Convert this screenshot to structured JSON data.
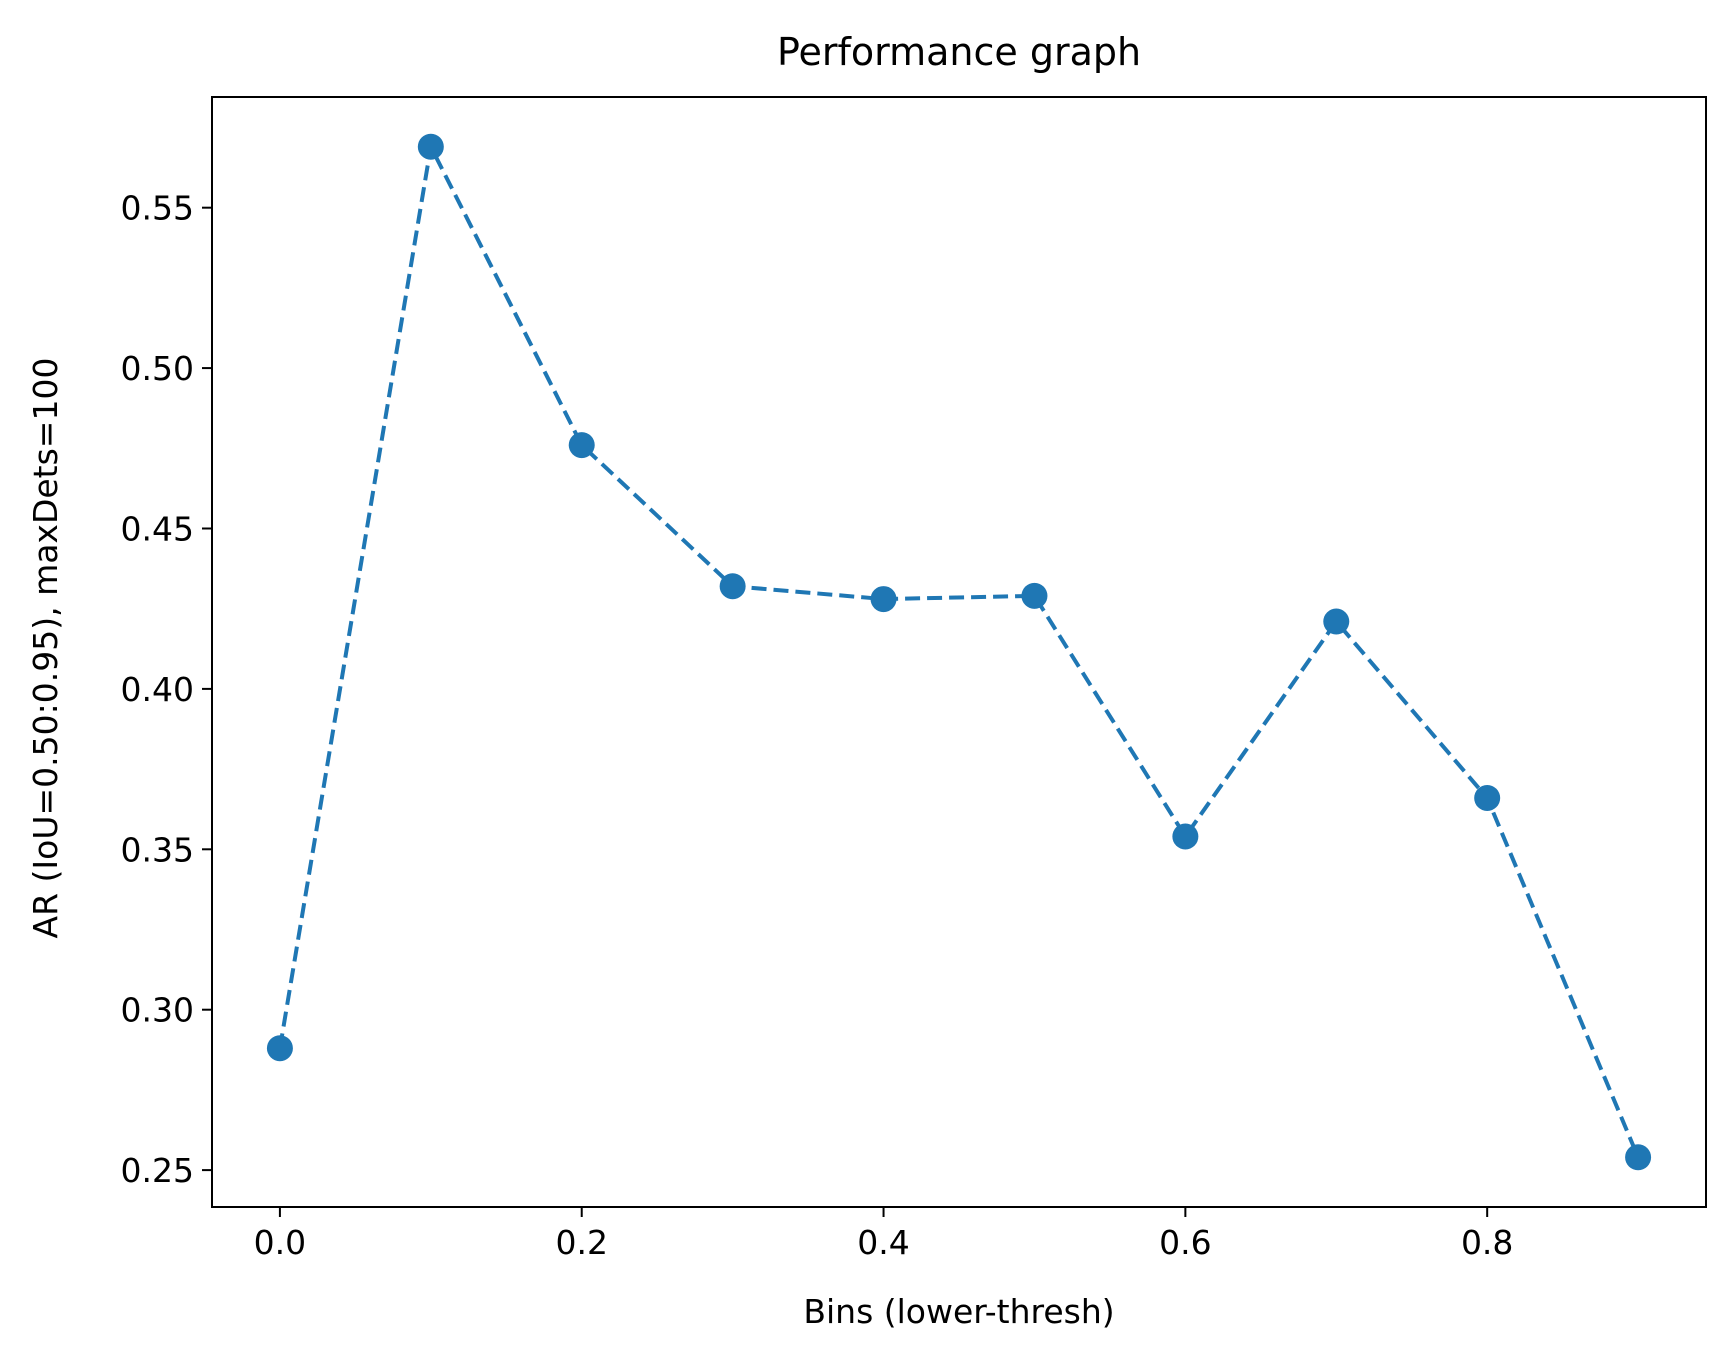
{
  "chart_data": {
    "type": "line",
    "title": "Performance graph",
    "xlabel": "Bins (lower-thresh)",
    "ylabel": "AR (IoU=0.50:0.95), maxDets=100",
    "x": [
      0.0,
      0.1,
      0.2,
      0.3,
      0.4,
      0.5,
      0.6,
      0.7,
      0.8,
      0.9
    ],
    "series": [
      {
        "values": [
          0.288,
          0.569,
          0.476,
          0.432,
          0.428,
          0.429,
          0.354,
          0.421,
          0.366,
          0.254
        ],
        "color": "#1f77b4",
        "line_style": "dashed",
        "marker": "circle"
      }
    ],
    "xlim": [
      -0.045,
      0.945
    ],
    "ylim": [
      0.2385,
      0.5845
    ],
    "xticks": [
      0.0,
      0.2,
      0.4,
      0.6,
      0.8
    ],
    "xtick_labels": [
      "0.0",
      "0.2",
      "0.4",
      "0.6",
      "0.8"
    ],
    "yticks": [
      0.25,
      0.3,
      0.35,
      0.4,
      0.45,
      0.5,
      0.55
    ],
    "ytick_labels": [
      "0.25",
      "0.30",
      "0.35",
      "0.40",
      "0.45",
      "0.50",
      "0.55"
    ],
    "grid": false,
    "legend": false
  }
}
